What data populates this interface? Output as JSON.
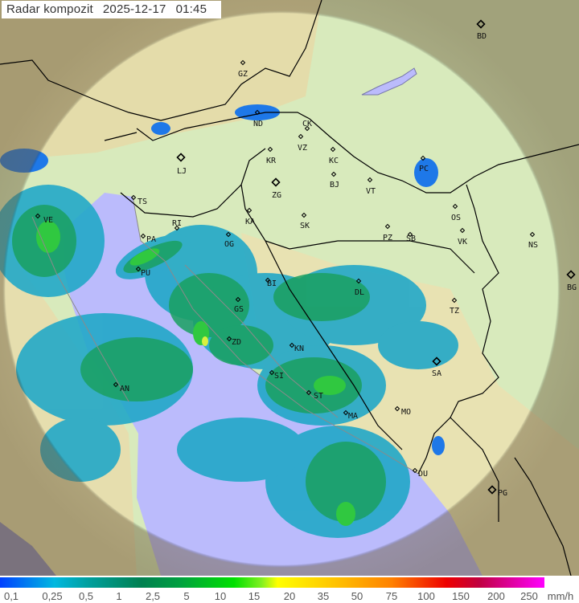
{
  "header": {
    "title": "Radar kompozit",
    "date": "2025-12-17",
    "time": "01:45"
  },
  "colors": {
    "sea": "#bbbbfc",
    "land": "#d6eabb",
    "terrain": "#e6e0b0",
    "outside_coverage": "#9a9470",
    "border": "#000000",
    "coast_outline": "#888888"
  },
  "cities": [
    {
      "code": "BD"
    },
    {
      "code": "GZ"
    },
    {
      "code": "ND"
    },
    {
      "code": "CK"
    },
    {
      "code": "VZ"
    },
    {
      "code": "KR"
    },
    {
      "code": "KC"
    },
    {
      "code": "LJ"
    },
    {
      "code": "ZG"
    },
    {
      "code": "BJ"
    },
    {
      "code": "VT"
    },
    {
      "code": "PC"
    },
    {
      "code": "TS"
    },
    {
      "code": "VE"
    },
    {
      "code": "RI"
    },
    {
      "code": "KA"
    },
    {
      "code": "SK"
    },
    {
      "code": "PZ"
    },
    {
      "code": "SB"
    },
    {
      "code": "OS"
    },
    {
      "code": "VK"
    },
    {
      "code": "NS"
    },
    {
      "code": "PA"
    },
    {
      "code": "OG"
    },
    {
      "code": "PU"
    },
    {
      "code": "BI"
    },
    {
      "code": "DL"
    },
    {
      "code": "BG"
    },
    {
      "code": "GS"
    },
    {
      "code": "TZ"
    },
    {
      "code": "ZD"
    },
    {
      "code": "KN"
    },
    {
      "code": "SI"
    },
    {
      "code": "SA"
    },
    {
      "code": "AN"
    },
    {
      "code": "ST"
    },
    {
      "code": "MA"
    },
    {
      "code": "MO"
    },
    {
      "code": "DU"
    },
    {
      "code": "PG"
    }
  ],
  "legend": {
    "unit": "mm/h",
    "labels": [
      "0,1",
      "0,25",
      "0,5",
      "1",
      "2,5",
      "5",
      "10",
      "15",
      "20",
      "35",
      "50",
      "75",
      "100",
      "150",
      "200",
      "250"
    ]
  }
}
